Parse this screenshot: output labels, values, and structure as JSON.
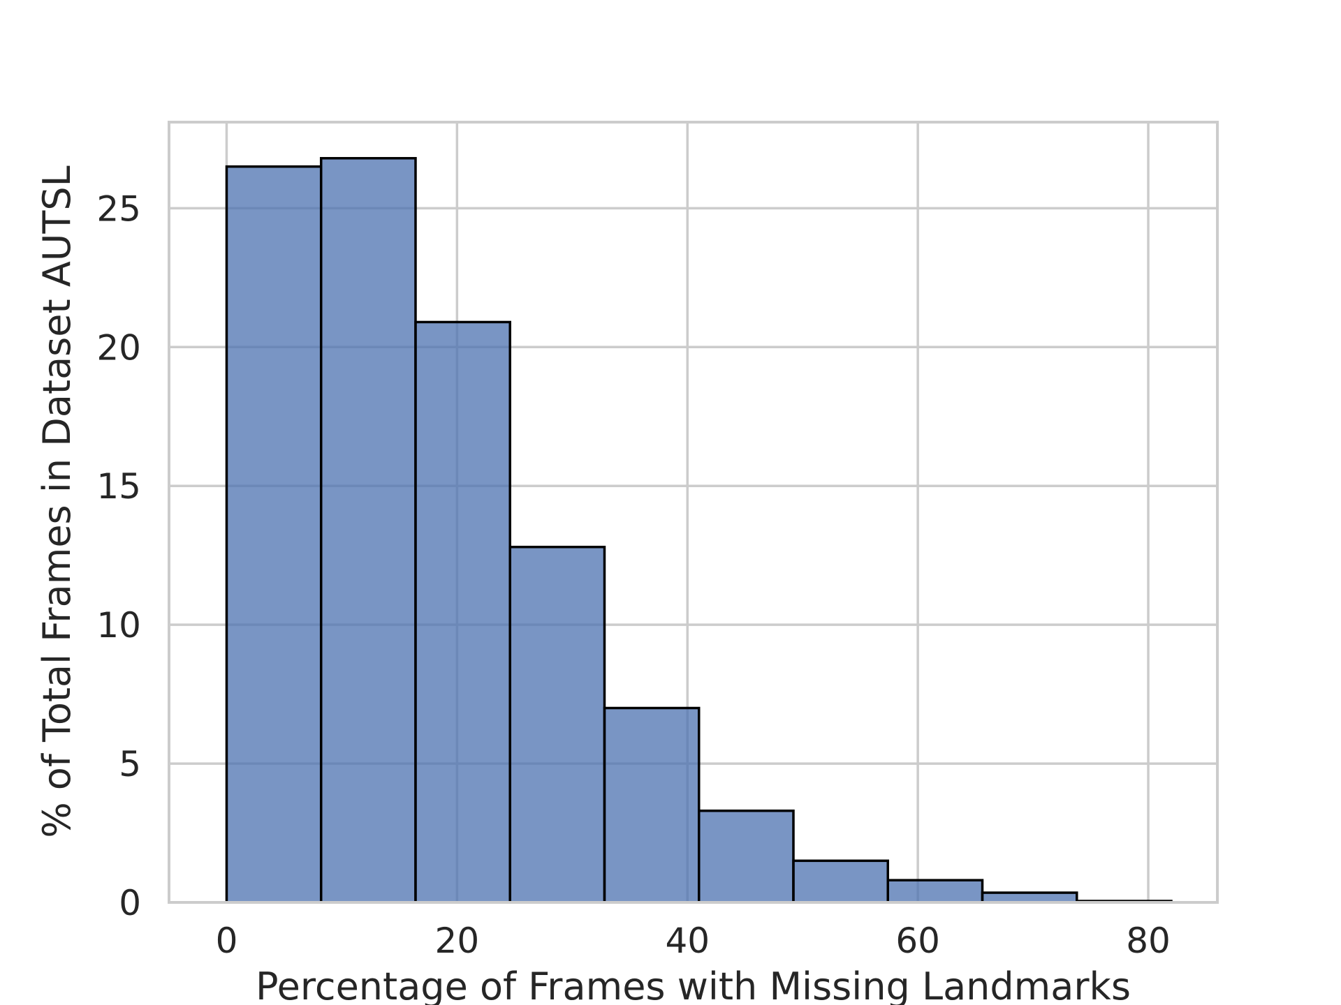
{
  "chart_data": {
    "type": "bar",
    "xlabel": "Percentage of Frames with Missing Landmarks",
    "ylabel": "% of Total Frames in Dataset AUTSL",
    "xlim": [
      -5,
      86
    ],
    "ylim": [
      0,
      28.1
    ],
    "xticks": [
      0,
      20,
      40,
      60,
      80
    ],
    "yticks": [
      0,
      5,
      10,
      15,
      20,
      25
    ],
    "grid": true,
    "bar_color": "#4c72b0",
    "bin_edges": [
      0,
      8.2,
      16.4,
      24.6,
      32.8,
      41.0,
      49.2,
      57.4,
      65.6,
      73.8,
      82.0
    ],
    "values": [
      26.5,
      26.8,
      20.9,
      12.8,
      7.0,
      3.3,
      1.5,
      0.8,
      0.35,
      0.05
    ]
  }
}
